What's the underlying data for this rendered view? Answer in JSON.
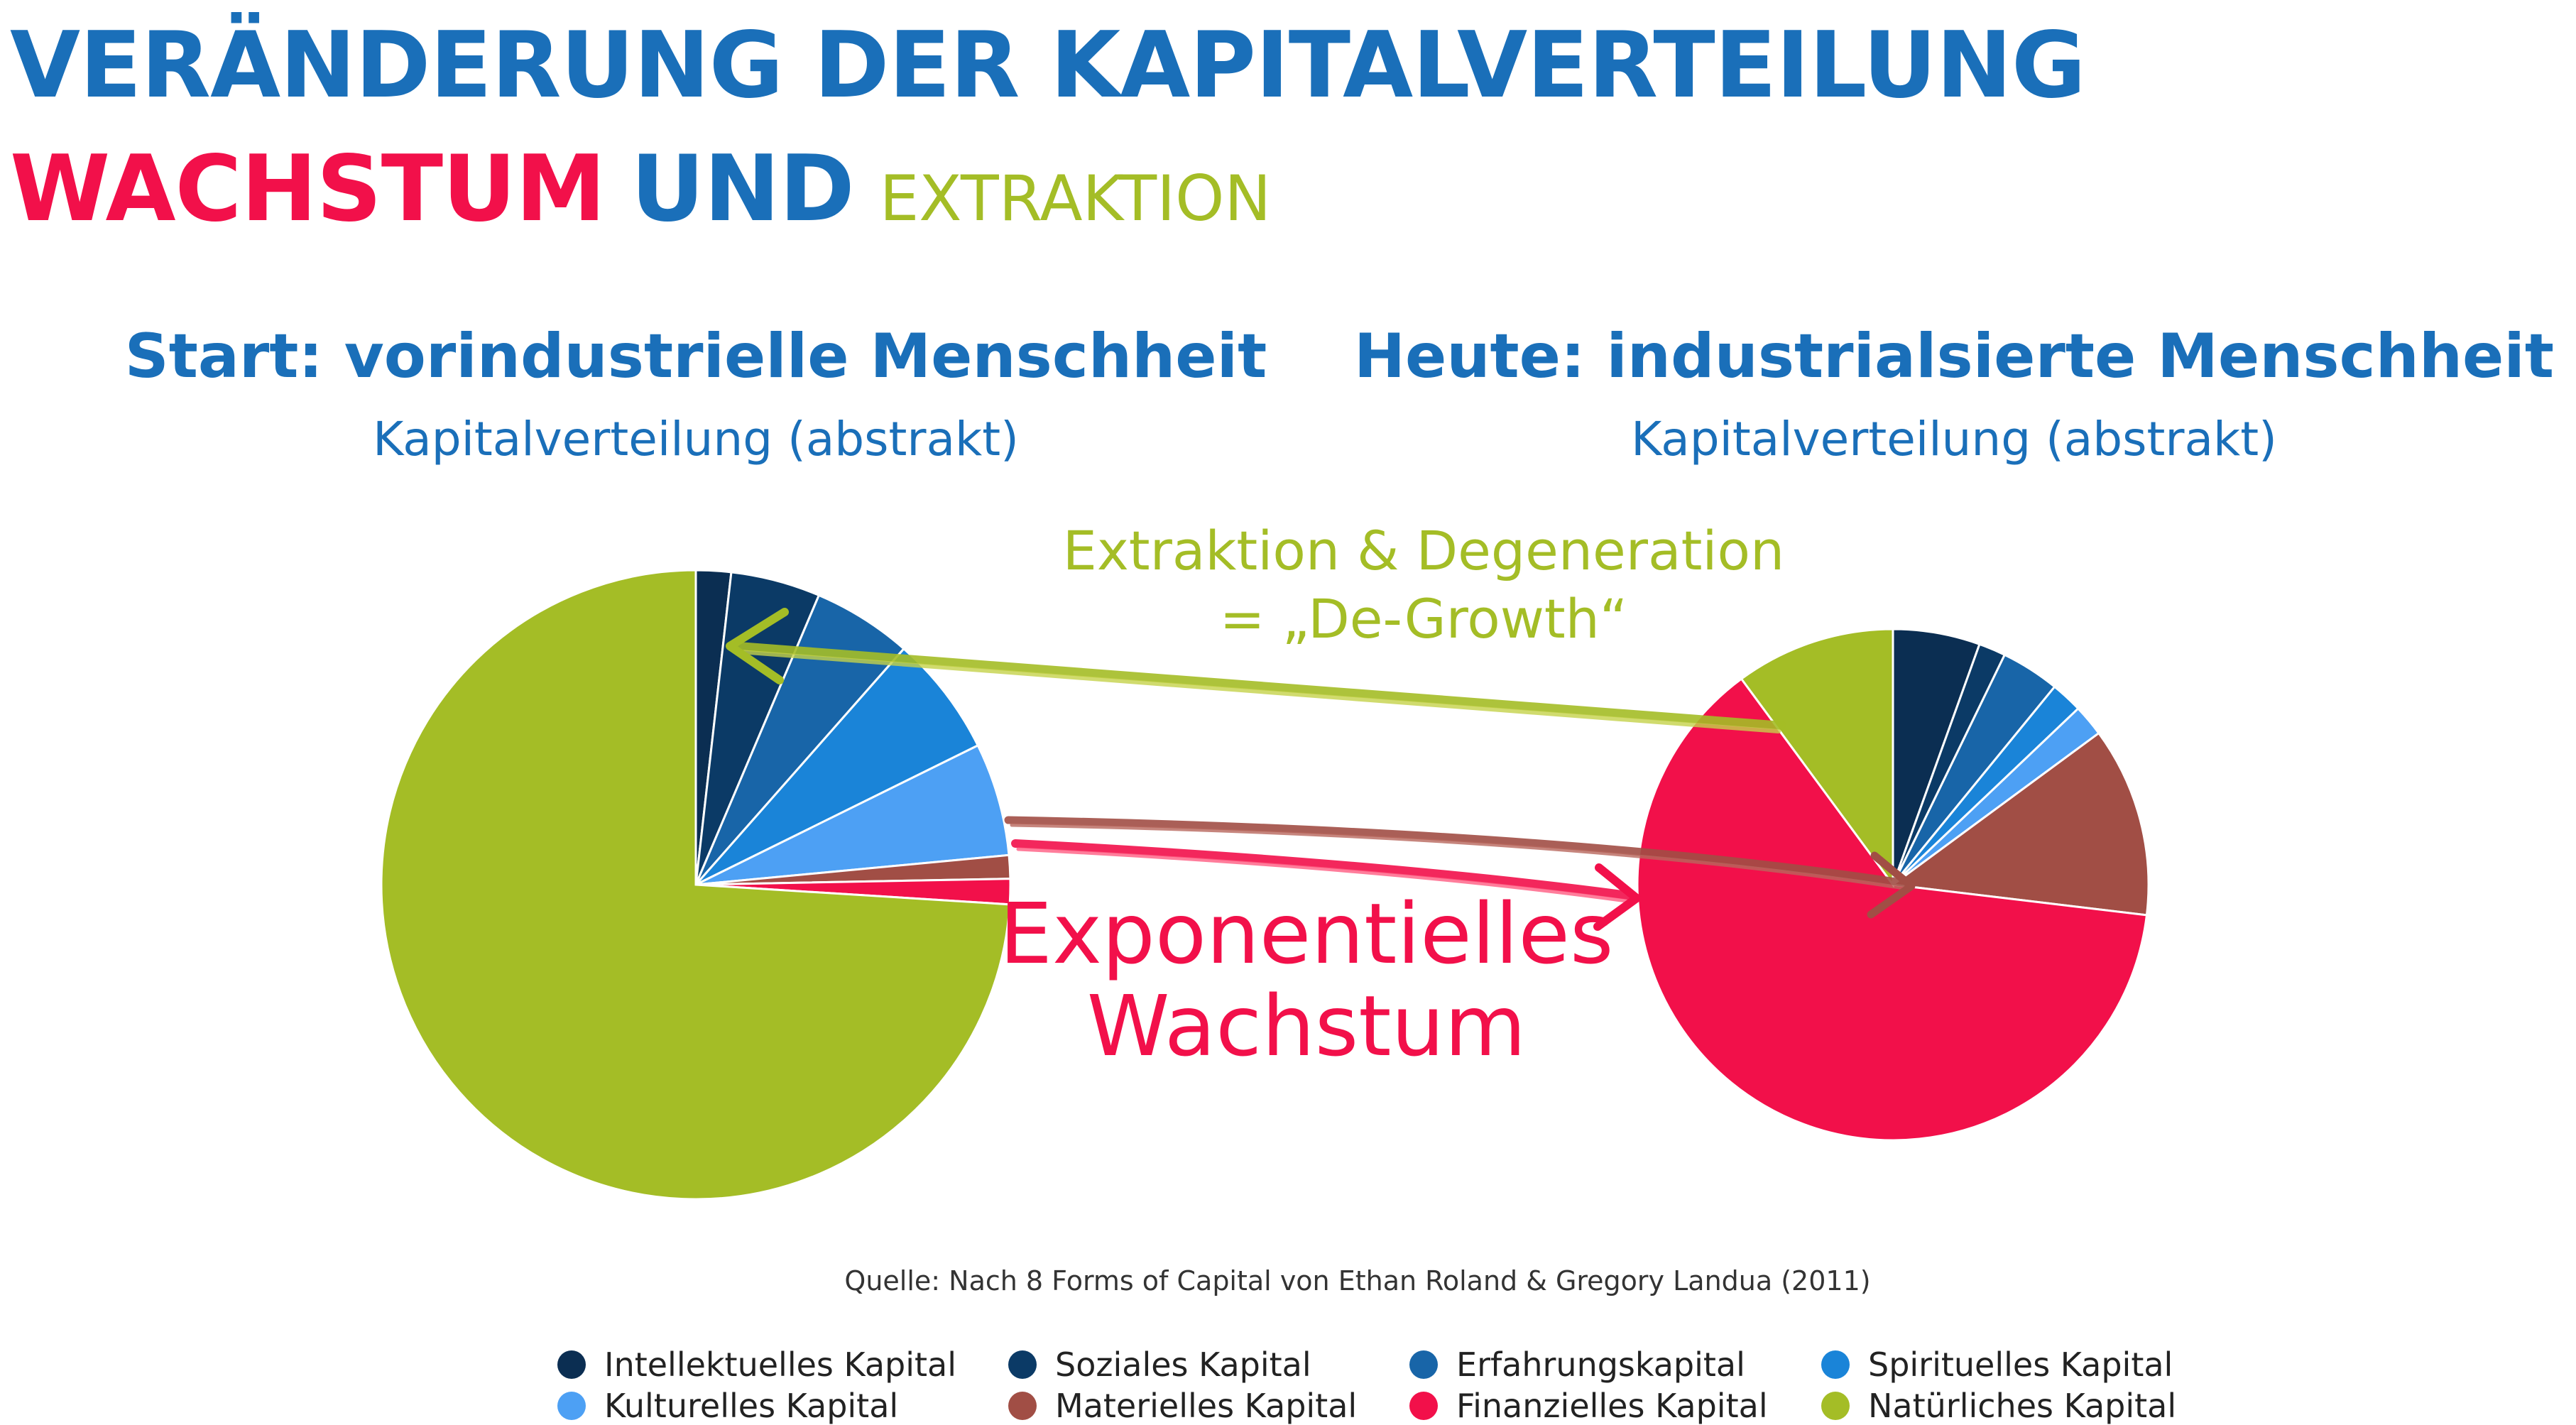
{
  "title_line1": "VERÄNDERUNG DER KAPITALVERTEILUNG",
  "title_line2": {
    "part1": "WACHSTUM",
    "part2": "UND",
    "part3": "EXTRAKTION"
  },
  "annotations": {
    "extraction_line1": "Extraktion & Degeneration",
    "extraction_line2": "= „De-Growth“",
    "growth_line1": "Exponentielles",
    "growth_line2": "Wachstum"
  },
  "source": "Quelle: Nach 8 Forms of Capital von Ethan Roland & Gregory Landua (2011)",
  "colors": {
    "title_blue": "#1a6fb9",
    "growth_red": "#f2104a",
    "extraction_green": "#a4bd26"
  },
  "chart_data": [
    {
      "type": "pie",
      "title": "Start: vorindustrielle Menschheit",
      "subtitle": "Kapitalverteilung (abstrakt)",
      "categories": [
        "Intellektuelles Kapital",
        "Soziales Kapital",
        "Erfahrungskapital",
        "Spirituelles Kapital",
        "Kulturelles Kapital",
        "Materielles Kapital",
        "Finanzielles Kapital",
        "Natürliches Kapital"
      ],
      "values": [
        1.8,
        4.6,
        5.1,
        6.2,
        5.8,
        1.2,
        1.3,
        74.0
      ],
      "colors": [
        "#0b2e52",
        "#0b3a66",
        "#1865a8",
        "#1a84d8",
        "#4da0f4",
        "#a14e45",
        "#f2104a",
        "#a4bd26"
      ]
    },
    {
      "type": "pie",
      "title": "Heute: industrialsierte Menschheit",
      "subtitle": "Kapitalverteilung (abstrakt)",
      "categories": [
        "Intellektuelles Kapital",
        "Soziales Kapital",
        "Erfahrungskapital",
        "Spirituelles Kapital",
        "Kulturelles Kapital",
        "Materielles Kapital",
        "Finanzielles Kapital",
        "Natürliches Kapital"
      ],
      "values": [
        5.5,
        1.7,
        3.7,
        2.0,
        2.0,
        12.0,
        63.0,
        10.1
      ],
      "colors": [
        "#0b2e52",
        "#0b3a66",
        "#1865a8",
        "#1a84d8",
        "#4da0f4",
        "#a14e45",
        "#f2104a",
        "#a4bd26"
      ]
    }
  ],
  "legend": [
    {
      "label": "Intellektuelles Kapital",
      "color": "#0b2e52"
    },
    {
      "label": "Soziales Kapital",
      "color": "#0b3a66"
    },
    {
      "label": "Erfahrungskapital",
      "color": "#1865a8"
    },
    {
      "label": "Spirituelles Kapital",
      "color": "#1a84d8"
    },
    {
      "label": "Kulturelles Kapital",
      "color": "#4da0f4"
    },
    {
      "label": "Materielles Kapital",
      "color": "#a14e45"
    },
    {
      "label": "Finanzielles Kapital",
      "color": "#f2104a"
    },
    {
      "label": "Natürliches Kapital",
      "color": "#a4bd26"
    }
  ]
}
